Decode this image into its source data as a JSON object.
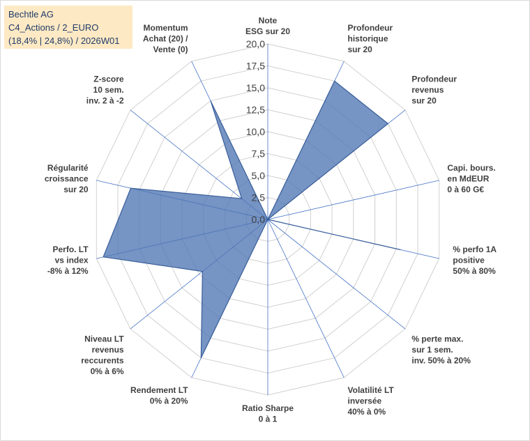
{
  "title_lines": [
    "Bechtle AG",
    "C4_Actions / 2_EURO",
    "(18,4% | 24,8%) / 2026W01"
  ],
  "colors": {
    "fill": "#4f76b3",
    "stroke": "#3a5f9a",
    "grid": "#d0d0d0",
    "spoke": "#4472c4",
    "title_bg": "#fde9c3"
  },
  "chart_data": {
    "type": "radar",
    "rmin": 0,
    "rmax": 20,
    "ticks": [
      "0,0",
      "2,5",
      "5,0",
      "7,5",
      "10,0",
      "12,5",
      "15,0",
      "17,5",
      "20,0"
    ],
    "tick_values": [
      0,
      2.5,
      5,
      7.5,
      10,
      12.5,
      15,
      17.5,
      20
    ],
    "axes": [
      {
        "label": [
          "Note",
          "ESG sur 20"
        ],
        "value": 0
      },
      {
        "label": [
          "Profondeur",
          "historique",
          "sur 20"
        ],
        "value": 17.5
      },
      {
        "label": [
          "Profondeur",
          "revenus",
          "sur 20"
        ],
        "value": 17.5
      },
      {
        "label": [
          "Capi. bours.",
          "en MdEUR",
          "0 à 60 G€"
        ],
        "value": 0
      },
      {
        "label": [
          "% perfo 1A",
          "positive",
          "50% à 80%"
        ],
        "value": 15.5
      },
      {
        "label": [
          "% perte max.",
          "sur 1 sem.",
          "inv. 50% à 20%"
        ],
        "value": 0
      },
      {
        "label": [
          "Volatilité LT",
          "inversée",
          "40% à 0%"
        ],
        "value": 0
      },
      {
        "label": [
          "Ratio Sharpe",
          "0 à 1"
        ],
        "value": 0
      },
      {
        "label": [
          "Rendement LT",
          "0% à 20%"
        ],
        "value": 17.5
      },
      {
        "label": [
          "Niveau LT",
          "revenus",
          "reccurents",
          "0% à 6%"
        ],
        "value": 9.5
      },
      {
        "label": [
          "Perfo. LT",
          "vs index",
          "-8% à 12%"
        ],
        "value": 19.2
      },
      {
        "label": [
          "Régularité",
          "croissance",
          "sur 20"
        ],
        "value": 16.0
      },
      {
        "label": [
          "Z-score",
          "10 sem.",
          "inv. 2 à -2"
        ],
        "value": 3.8
      },
      {
        "label": [
          "Momentum",
          "Achat (20) /",
          "Vente (0)"
        ],
        "value": 15.0
      }
    ]
  }
}
